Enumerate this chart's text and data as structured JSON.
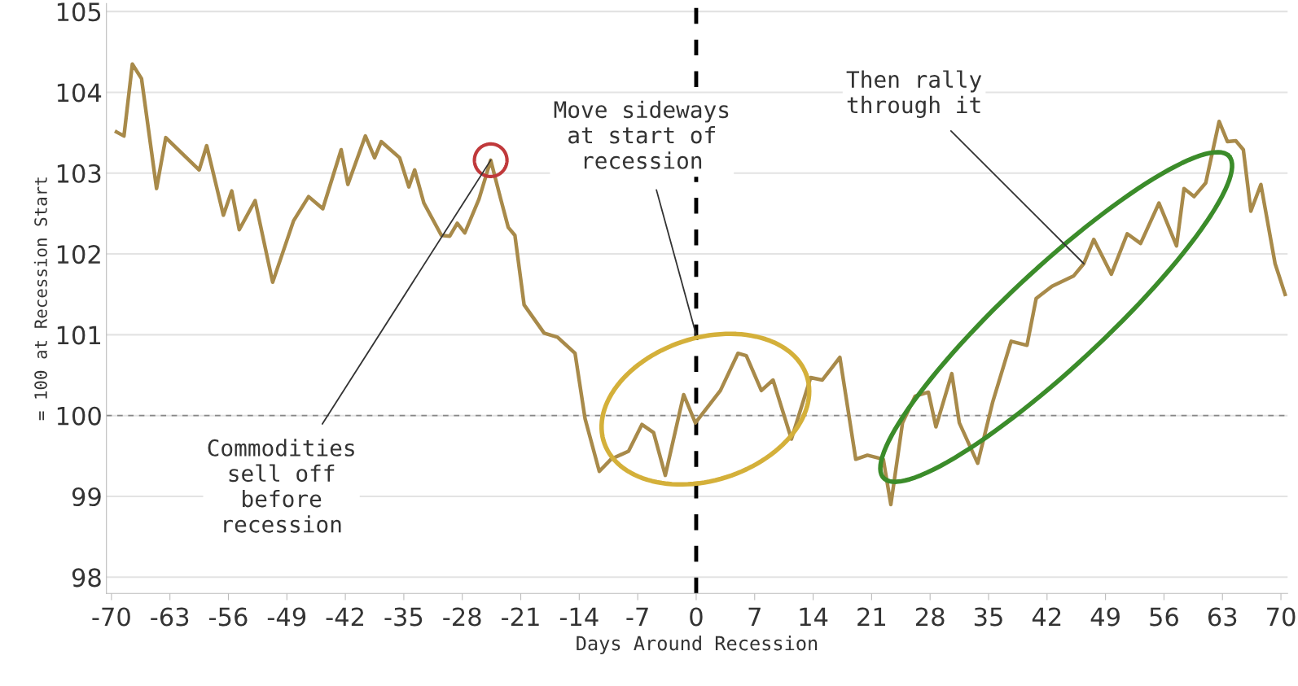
{
  "chart_data": {
    "type": "line",
    "xlabel": "Days Around Recession",
    "ylabel": "= 100 at Recession Start",
    "x": [
      -69.4,
      -68.5,
      -67.5,
      -66.4,
      -64.6,
      -63.5,
      -59.5,
      -58.6,
      -56.6,
      -55.6,
      -54.7,
      -52.8,
      -50.7,
      -48.2,
      -46.4,
      -44.7,
      -42.5,
      -41.7,
      -39.6,
      -38.5,
      -37.7,
      -35.5,
      -34.4,
      -33.7,
      -32.6,
      -30.5,
      -29.5,
      -28.6,
      -27.7,
      -26.0,
      -24.6,
      -23.4,
      -22.5,
      -21.7,
      -20.6,
      -18.2,
      -16.6,
      -14.5,
      -13.3,
      -11.6,
      -10.2,
      -8.1,
      -6.5,
      -5.1,
      -3.7,
      -1.5,
      -0.1,
      2.9,
      5.0,
      6.0,
      7.8,
      9.2,
      11.4,
      13.7,
      15.1,
      17.2,
      19.1,
      20.5,
      22.4,
      23.3,
      24.7,
      26.2,
      27.8,
      28.7,
      30.6,
      31.5,
      33.7,
      35.5,
      37.7,
      39.6,
      40.7,
      42.6,
      45.2,
      46.4,
      47.6,
      49.7,
      51.6,
      53.2,
      55.4,
      57.5,
      58.4,
      59.6,
      61.0,
      62.6,
      63.6,
      64.6,
      65.5,
      66.4,
      67.6,
      69.3,
      70.5
    ],
    "series": [
      {
        "color": "#a88a4a",
        "values": [
          103.51,
          103.46,
          104.35,
          104.17,
          102.81,
          103.44,
          103.04,
          103.34,
          102.48,
          102.78,
          102.3,
          102.66,
          101.65,
          102.41,
          102.71,
          102.56,
          103.29,
          102.86,
          103.46,
          103.19,
          103.39,
          103.19,
          102.83,
          103.04,
          102.63,
          102.23,
          102.22,
          102.38,
          102.26,
          102.68,
          103.16,
          102.68,
          102.33,
          102.23,
          101.37,
          101.02,
          100.97,
          100.77,
          99.96,
          99.31,
          99.46,
          99.56,
          99.89,
          99.79,
          99.26,
          100.26,
          99.91,
          100.31,
          100.77,
          100.74,
          100.31,
          100.44,
          99.71,
          100.47,
          100.44,
          100.72,
          99.46,
          99.51,
          99.46,
          98.9,
          99.91,
          100.24,
          100.29,
          99.86,
          100.52,
          99.91,
          99.41,
          100.17,
          100.92,
          100.87,
          101.45,
          101.6,
          101.73,
          101.88,
          102.18,
          101.75,
          102.25,
          102.13,
          102.63,
          102.1,
          102.81,
          102.71,
          102.88,
          103.64,
          103.39,
          103.4,
          103.29,
          102.53,
          102.86,
          101.88,
          101.5
        ]
      }
    ],
    "xlim": [
      -70.6,
      70.8
    ],
    "xticks": [
      -70,
      -63,
      -56,
      -49,
      -42,
      -35,
      -28,
      -21,
      -14,
      -7,
      0,
      7,
      14,
      21,
      28,
      35,
      42,
      49,
      56,
      63,
      70
    ],
    "ylim": [
      97.8,
      105.1
    ],
    "yticks": [
      98,
      99,
      100,
      101,
      102,
      103,
      104,
      105
    ],
    "grid": "y",
    "marker": "none",
    "line_style": "solid",
    "ref_lines": [
      {
        "axis": "x",
        "value": 0,
        "color": "#000000",
        "line_style": "dashed"
      },
      {
        "axis": "y",
        "value": 100,
        "color": "#888888",
        "line_style": "dashed"
      }
    ],
    "annotations": [
      {
        "text": "Commodities\nsell off\nbefore\nrecession",
        "x": -24.6,
        "y": 103.16
      },
      {
        "text": "Move sideways\nat start of\nrecession",
        "x": 0,
        "y": 101.0
      },
      {
        "text": "Then rally\nthrough it",
        "x": 46.4,
        "y": 101.88
      }
    ]
  }
}
